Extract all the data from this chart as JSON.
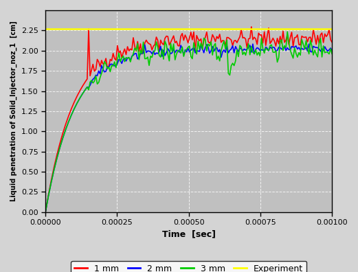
{
  "title": "",
  "xlabel": "Time  [sec]",
  "ylabel": "Liquid penetration of Solid_Injector_noz_1  [cm]",
  "xlim": [
    0.0,
    0.001
  ],
  "ylim": [
    0.0,
    2.5
  ],
  "yticks": [
    0.0,
    0.25,
    0.5,
    0.75,
    1.0,
    1.25,
    1.5,
    1.75,
    2.0,
    2.25
  ],
  "background_color": "#c0c0c0",
  "legend_labels": [
    "1 mm",
    "2 mm",
    "3 mm",
    "Experiment"
  ],
  "line_colors": [
    "#ff0000",
    "#0000ff",
    "#00cc00",
    "#ffff00"
  ],
  "experiment_value": 2.27,
  "seed": 42
}
